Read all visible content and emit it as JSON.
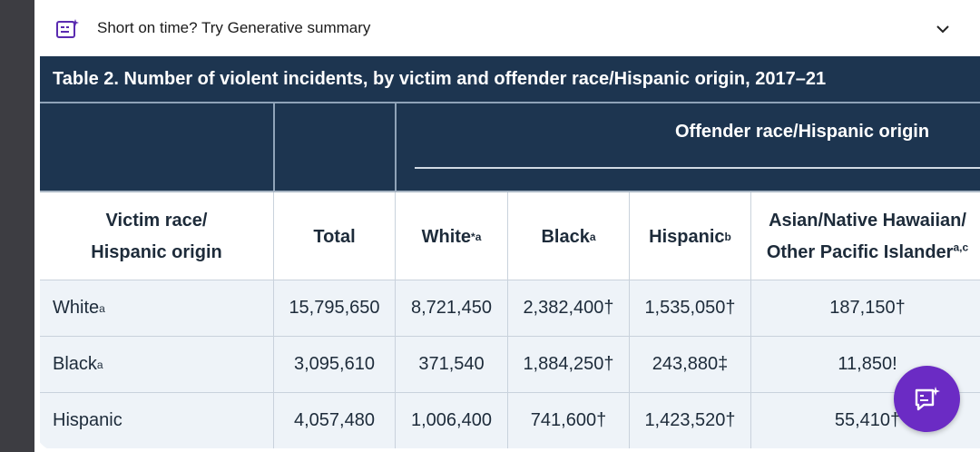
{
  "banner": {
    "text": "Short on time? Try Generative summary",
    "icon": "generative-summary-icon",
    "chevron_icon": "chevron-down-icon"
  },
  "table": {
    "title": "Table 2. Number of violent incidents, by victim and offender race/Hispanic origin, 2017–21",
    "group_header": "Offender race/Hispanic origin",
    "col_headers": {
      "victim_line1": "Victim race/",
      "victim_line2": "Hispanic origin",
      "total": "Total",
      "white": "White",
      "white_sup": "*a",
      "black": "Black",
      "black_sup": "a",
      "hispanic": "Hispanic",
      "hispanic_sup": "b",
      "asian_line1": "Asian/Native Hawaiian/",
      "asian_line2": "Other Pacific Islander",
      "asian_sup": "a,c"
    },
    "rows": [
      {
        "label": "White",
        "label_sup": "a",
        "total": "15,795,650",
        "white": "8,721,450",
        "black": "2,382,400†",
        "hispanic": "1,535,050†",
        "asian": "187,150†"
      },
      {
        "label": "Black",
        "label_sup": "a",
        "total": "3,095,610",
        "white": "371,540",
        "black": "1,884,250†",
        "hispanic": "243,880‡",
        "asian": "11,850!"
      },
      {
        "label": "Hispanic",
        "label_sup": "",
        "total": "4,057,480",
        "white": "1,006,400",
        "black": "741,600†",
        "hispanic": "1,423,520†",
        "asian": "55,410†"
      }
    ]
  },
  "fab": {
    "icon": "ai-chat-icon"
  },
  "colors": {
    "header_bg": "#1d3550",
    "row_shade": "#eef3f8",
    "fab": "#6b2bc4"
  }
}
